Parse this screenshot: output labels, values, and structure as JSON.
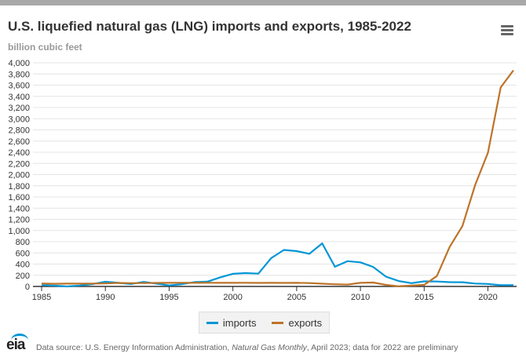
{
  "header": {
    "title": "U.S. liquefied natural gas (LNG) imports and exports, 1985-2022",
    "menu_icon": "hamburger-menu-icon"
  },
  "chart_data": {
    "type": "line",
    "title": "U.S. liquefied natural gas (LNG) imports and exports, 1985-2022",
    "ylabel": "billion cubic feet",
    "xlabel": "",
    "xlim": [
      1985,
      2022
    ],
    "ylim": [
      0,
      4000
    ],
    "x_ticks": [
      "1985",
      "1990",
      "1995",
      "2000",
      "2005",
      "2010",
      "2015",
      "2020"
    ],
    "y_ticks": [
      "0",
      "200",
      "400",
      "600",
      "800",
      "1,000",
      "1,200",
      "1,400",
      "1,600",
      "1,800",
      "2,000",
      "2,200",
      "2,400",
      "2,600",
      "2,800",
      "3,000",
      "3,200",
      "3,400",
      "3,600",
      "3,800",
      "4,000"
    ],
    "grid": true,
    "legend_position": "bottom",
    "x": [
      1985,
      1986,
      1987,
      1988,
      1989,
      1990,
      1991,
      1992,
      1993,
      1994,
      1995,
      1996,
      1997,
      1998,
      1999,
      2000,
      2001,
      2002,
      2003,
      2004,
      2005,
      2006,
      2007,
      2008,
      2009,
      2010,
      2011,
      2012,
      2013,
      2014,
      2015,
      2016,
      2017,
      2018,
      2019,
      2020,
      2021,
      2022
    ],
    "series": [
      {
        "name": "imports",
        "color": "#0096d6",
        "values": [
          24,
          14,
          0,
          17,
          42,
          84,
          64,
          43,
          82,
          51,
          18,
          40,
          78,
          85,
          163,
          226,
          238,
          229,
          507,
          652,
          631,
          584,
          771,
          352,
          452,
          431,
          349,
          175,
          97,
          59,
          91,
          88,
          77,
          76,
          52,
          45,
          22,
          24
        ]
      },
      {
        "name": "exports",
        "color": "#bd732a",
        "values": [
          53,
          48,
          50,
          51,
          52,
          53,
          63,
          59,
          60,
          63,
          64,
          66,
          64,
          66,
          64,
          65,
          66,
          63,
          65,
          63,
          65,
          61,
          49,
          39,
          33,
          64,
          70,
          28,
          3,
          16,
          28,
          186,
          707,
          1080,
          1818,
          2390,
          3560,
          3865
        ]
      }
    ]
  },
  "footer": {
    "source_prefix": "Data source: U.S. Energy Information Administration, ",
    "source_italic": "Natural Gas Monthly",
    "source_suffix": ", April 2023; data for 2022 are preliminary",
    "logo_text": "eia"
  }
}
